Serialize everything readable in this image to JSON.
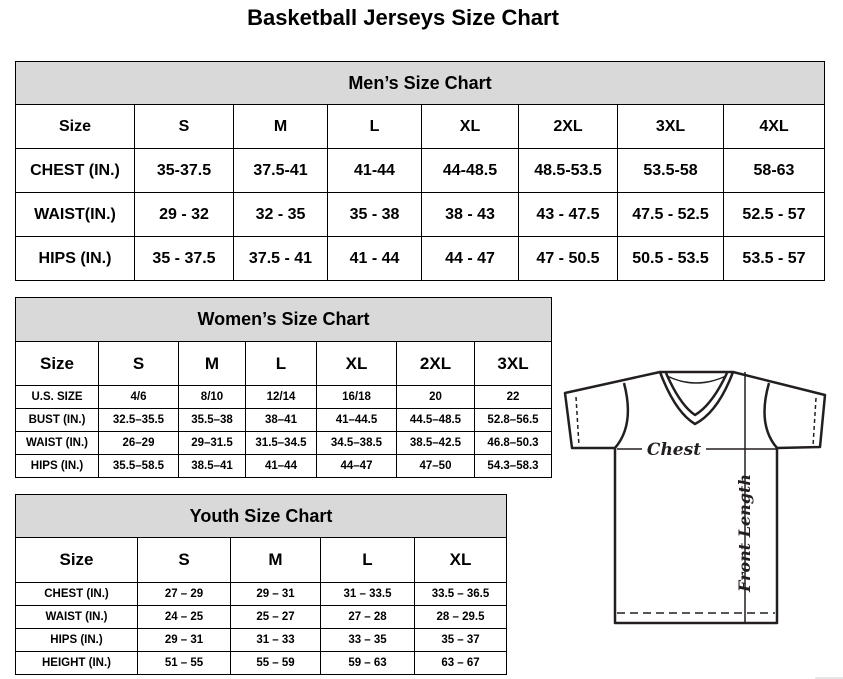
{
  "title": "Basketball Jerseys Size Chart",
  "men": {
    "caption": "Men’s Size Chart",
    "header": [
      "Size",
      "S",
      "M",
      "L",
      "XL",
      "2XL",
      "3XL",
      "4XL"
    ],
    "rows": [
      [
        "CHEST (IN.)",
        "35-37.5",
        "37.5-41",
        "41-44",
        "44-48.5",
        "48.5-53.5",
        "53.5-58",
        "58-63"
      ],
      [
        "WAIST(IN.)",
        "29 - 32",
        "32 - 35",
        "35 - 38",
        "38 - 43",
        "43 - 47.5",
        "47.5 - 52.5",
        "52.5 - 57"
      ],
      [
        "HIPS (IN.)",
        "35 - 37.5",
        "37.5 - 41",
        "41 - 44",
        "44 - 47",
        "47 - 50.5",
        "50.5 - 53.5",
        "53.5 - 57"
      ]
    ]
  },
  "women": {
    "caption": "Women’s Size Chart",
    "header": [
      "Size",
      "S",
      "M",
      "L",
      "XL",
      "2XL",
      "3XL"
    ],
    "rows": [
      [
        "U.S. SIZE",
        "4/6",
        "8/10",
        "12/14",
        "16/18",
        "20",
        "22"
      ],
      [
        "BUST (IN.)",
        "32.5–35.5",
        "35.5–38",
        "38–41",
        "41–44.5",
        "44.5–48.5",
        "52.8–56.5"
      ],
      [
        "WAIST (IN.)",
        "26–29",
        "29–31.5",
        "31.5–34.5",
        "34.5–38.5",
        "38.5–42.5",
        "46.8–50.3"
      ],
      [
        "HIPS (IN.)",
        "35.5–58.5",
        "38.5–41",
        "41–44",
        "44–47",
        "47–50",
        "54.3–58.3"
      ]
    ]
  },
  "youth": {
    "caption": "Youth Size Chart",
    "header": [
      "Size",
      "S",
      "M",
      "L",
      "XL"
    ],
    "rows": [
      [
        "CHEST (IN.)",
        "27 – 29",
        "29 – 31",
        "31 – 33.5",
        "33.5 – 36.5"
      ],
      [
        "WAIST (IN.)",
        "24 – 25",
        "25 – 27",
        "27 – 28",
        "28 – 29.5"
      ],
      [
        "HIPS (IN.)",
        "29 – 31",
        "31 – 33",
        "33 – 35",
        "35 – 37"
      ],
      [
        "HEIGHT (IN.)",
        "51 – 55",
        "55 – 59",
        "59 – 63",
        "63 – 67"
      ]
    ]
  },
  "diagram": {
    "chest_label": "Chest",
    "length_label": "Front Length"
  }
}
